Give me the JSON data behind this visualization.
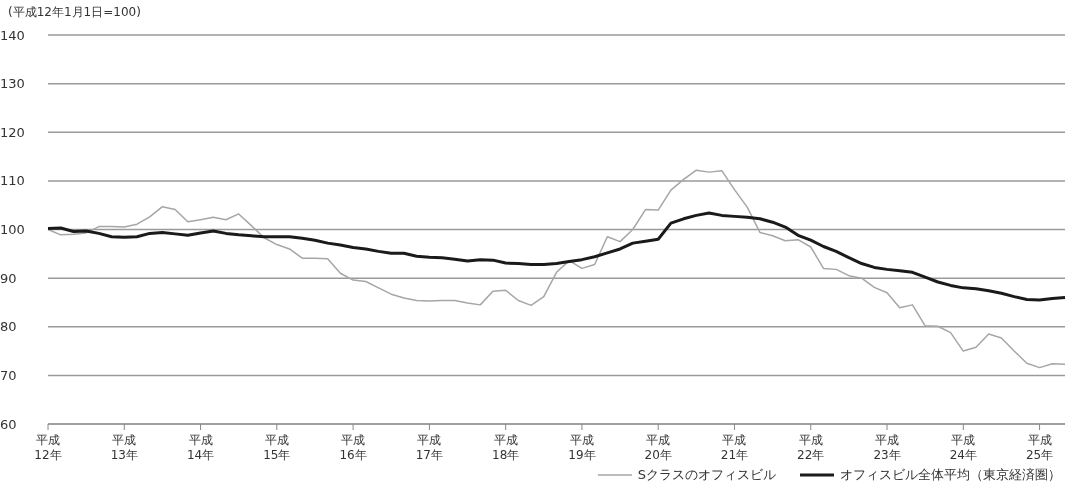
{
  "chart_data": {
    "type": "line",
    "annotations": [
      "(平成12年1月1日=100)"
    ],
    "categories": [
      "平成\n12年",
      null,
      null,
      null,
      null,
      null,
      "平成\n13年",
      null,
      null,
      null,
      null,
      null,
      "平成\n14年",
      null,
      null,
      null,
      null,
      null,
      "平成\n15年",
      null,
      null,
      null,
      null,
      null,
      "平成\n16年",
      null,
      null,
      null,
      null,
      null,
      "平成\n17年",
      null,
      null,
      null,
      null,
      null,
      "平成\n18年",
      null,
      null,
      null,
      null,
      null,
      "平成\n19年",
      null,
      null,
      null,
      null,
      null,
      "平成\n20年",
      null,
      null,
      null,
      null,
      null,
      "平成\n21年",
      null,
      null,
      null,
      null,
      null,
      "平成\n22年",
      null,
      null,
      null,
      null,
      null,
      "平成\n23年",
      null,
      null,
      null,
      null,
      null,
      "平成\n24年",
      null,
      null,
      null,
      null,
      null,
      "平成\n25年",
      null,
      null
    ],
    "ylim": [
      60,
      140
    ],
    "yticks": [
      60,
      70,
      80,
      90,
      100,
      110,
      120,
      130,
      140
    ],
    "grid": "y",
    "legend": "bottom right",
    "marker": "none",
    "line_style": "solid",
    "series": [
      {
        "name": "Sクラスのオフィスビル",
        "color": "#a6a6a6",
        "values": [
          100,
          98.9,
          99.0,
          99.3,
          100.6,
          100.6,
          100.5,
          101.1,
          102.6,
          104.7,
          104.1,
          101.6,
          102.0,
          102.5,
          102.0,
          103.2,
          100.8,
          98.3,
          96.9,
          96.0,
          94.1,
          94.1,
          94.0,
          91.0,
          89.6,
          89.3,
          88.0,
          86.7,
          85.9,
          85.4,
          85.3,
          85.4,
          85.4,
          84.9,
          84.5,
          87.3,
          87.5,
          85.4,
          84.4,
          86.2,
          91.2,
          93.6,
          92.0,
          92.8,
          98.5,
          97.5,
          100.0,
          104.1,
          104.0,
          108.1,
          110.3,
          112.2,
          111.8,
          112.1,
          108.2,
          104.6,
          99.4,
          98.7,
          97.7,
          97.9,
          96.4,
          92.0,
          91.8,
          90.5,
          90.0,
          88.1,
          87.0,
          83.9,
          84.5,
          80.2,
          80.1,
          78.8,
          75.0,
          75.8,
          78.5,
          77.7,
          75.0,
          72.5,
          71.6,
          72.4,
          72.3
        ]
      },
      {
        "name": "オフィスビル全体平均（東京経済圏）",
        "color": "#1a1a1a",
        "values": [
          100.2,
          100.3,
          99.6,
          99.7,
          99.2,
          98.5,
          98.4,
          98.5,
          99.2,
          99.4,
          99.1,
          98.8,
          99.3,
          99.7,
          99.2,
          98.9,
          98.7,
          98.5,
          98.5,
          98.5,
          98.2,
          97.8,
          97.2,
          96.8,
          96.3,
          96.0,
          95.5,
          95.1,
          95.1,
          94.5,
          94.3,
          94.2,
          93.9,
          93.5,
          93.8,
          93.7,
          93.1,
          93.0,
          92.8,
          92.8,
          93.0,
          93.4,
          93.8,
          94.4,
          95.2,
          96.0,
          97.2,
          97.6,
          98.0,
          101.3,
          102.2,
          102.9,
          103.4,
          102.9,
          102.7,
          102.5,
          102.2,
          101.5,
          100.5,
          98.8,
          97.8,
          96.5,
          95.5,
          94.2,
          93.0,
          92.2,
          91.8,
          91.5,
          91.2,
          90.2,
          89.2,
          88.5,
          88.0,
          87.8,
          87.4,
          86.9,
          86.2,
          85.6,
          85.5,
          85.8,
          86.0
        ]
      }
    ]
  }
}
